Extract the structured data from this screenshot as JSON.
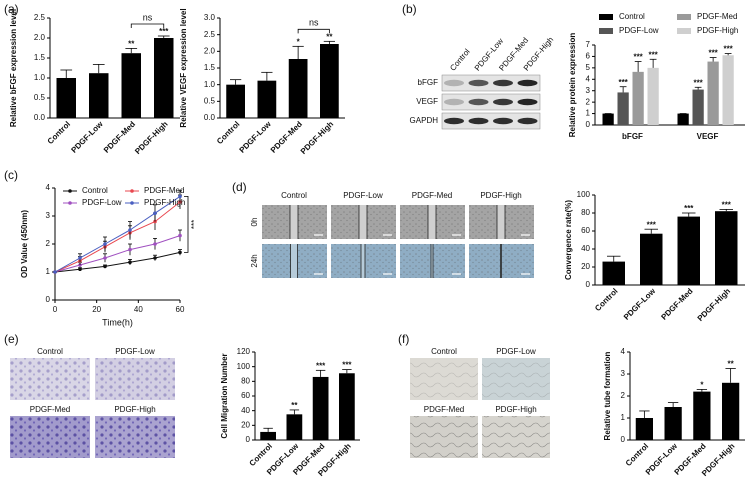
{
  "panel_labels": [
    "(a)",
    "(b)",
    "(c)",
    "(d)",
    "(e)",
    "(f)"
  ],
  "images": {
    "b": {
      "rows": [
        "bFGF",
        "VEGF",
        "GAPDH"
      ],
      "columns": [
        "Control",
        "PDGF-Low",
        "PDGF-Med",
        "PDGF-High"
      ]
    },
    "d": {
      "columns": [
        "Control",
        "PDGF-Low",
        "PDGF-Med",
        "PDGF-High"
      ],
      "rows": [
        "0h",
        "24h"
      ]
    },
    "e": {
      "labels": [
        "Control",
        "PDGF-Low",
        "PDGF-Med",
        "PDGF-High"
      ]
    },
    "f": {
      "labels": [
        "Control",
        "PDGF-Low",
        "PDGF-Med",
        "PDGF-High"
      ]
    }
  },
  "chart_data": [
    {
      "type": "bar",
      "y_label": "Relative bFGF expression  level",
      "categories": [
        "Control",
        "PDGF-Low",
        "PDGF-Med",
        "PDGF-High"
      ],
      "values": [
        1.0,
        1.12,
        1.62,
        2.0
      ],
      "errors": [
        0.2,
        0.22,
        0.12,
        0.05
      ],
      "significance": [
        null,
        null,
        "**",
        "***"
      ],
      "bracket_label": "ns",
      "color": "#000000",
      "ylim": [
        0,
        2.5
      ],
      "yticks": [
        {
          "value": 0,
          "label": "0.0"
        },
        {
          "value": 0.5,
          "label": "0.5"
        },
        {
          "value": 1,
          "label": "1.0"
        },
        {
          "value": 1.5,
          "label": "1.5"
        },
        {
          "value": 2,
          "label": "2.0"
        },
        {
          "value": 2.5,
          "label": "2.5"
        }
      ]
    },
    {
      "type": "bar",
      "y_label": "Relative VEGF expression  level",
      "categories": [
        "Control",
        "PDGF-Low",
        "PDGF-Med",
        "PDGF-High"
      ],
      "values": [
        1.0,
        1.12,
        1.77,
        2.22
      ],
      "errors": [
        0.15,
        0.25,
        0.38,
        0.08
      ],
      "significance": [
        null,
        null,
        "*",
        "**"
      ],
      "bracket_label": "ns",
      "color": "#000000",
      "ylim": [
        0,
        3
      ],
      "yticks": [
        {
          "value": 0,
          "label": "0.0"
        },
        {
          "value": 0.5,
          "label": "0.5"
        },
        {
          "value": 1,
          "label": "1.0"
        },
        {
          "value": 1.5,
          "label": "1.5"
        },
        {
          "value": 2,
          "label": "2.0"
        },
        {
          "value": 2.5,
          "label": "2.5"
        },
        {
          "value": 3,
          "label": "3.0"
        }
      ]
    },
    {
      "type": "grouped_bar",
      "y_label": "Relative protein expression",
      "categories": [
        "bFGF",
        "VEGF"
      ],
      "series": [
        {
          "name": "Control",
          "color": "#000000",
          "values": [
            1,
            1
          ],
          "errors": [
            0,
            0
          ],
          "significance": [
            null,
            null
          ]
        },
        {
          "name": "PDGF-Low",
          "color": "#555555",
          "values": [
            2.85,
            3.1
          ],
          "errors": [
            0.5,
            0.2
          ],
          "significance": [
            "***",
            "***"
          ]
        },
        {
          "name": "PDGF-Med",
          "color": "#9a9a9a",
          "values": [
            4.65,
            5.55
          ],
          "errors": [
            0.9,
            0.35
          ],
          "significance": [
            "***",
            "***"
          ]
        },
        {
          "name": "PDGF-High",
          "color": "#cfcfcf",
          "values": [
            5.0,
            6.1
          ],
          "errors": [
            0.75,
            0.15
          ],
          "significance": [
            "***",
            "***"
          ]
        }
      ],
      "ylim": [
        0,
        7
      ],
      "yticks": [
        0,
        1,
        2,
        3,
        4,
        5,
        6,
        7
      ],
      "legend": "top"
    },
    {
      "type": "line",
      "y_label": "OD Value (450nm)",
      "x_label": "Time(h)",
      "x": [
        0,
        12,
        24,
        36,
        48,
        60
      ],
      "series": [
        {
          "name": "Control",
          "color": "#111111",
          "values": [
            1,
            1.1,
            1.2,
            1.35,
            1.5,
            1.7
          ],
          "errors": [
            0,
            0.05,
            0.05,
            0.1,
            0.1,
            0.1
          ]
        },
        {
          "name": "PDGF-Low",
          "color": "#a050c0",
          "values": [
            1,
            1.25,
            1.5,
            1.8,
            2.0,
            2.3
          ],
          "errors": [
            0,
            0.1,
            0.15,
            0.2,
            0.2,
            0.2
          ]
        },
        {
          "name": "PDGF-Med",
          "color": "#e8474f",
          "values": [
            1,
            1.4,
            1.9,
            2.4,
            2.8,
            3.5
          ],
          "errors": [
            0,
            0.15,
            0.2,
            0.25,
            0.3,
            0.25
          ]
        },
        {
          "name": "PDGF-High",
          "color": "#4a5fc1",
          "values": [
            1,
            1.5,
            2.0,
            2.5,
            3.1,
            3.7
          ],
          "errors": [
            0,
            0.15,
            0.25,
            0.3,
            0.3,
            0.2
          ]
        }
      ],
      "xlim": [
        0,
        60
      ],
      "xticks": [
        0,
        20,
        40,
        60
      ],
      "ylim": [
        0,
        4
      ],
      "yticks": [
        0,
        1,
        2,
        3,
        4
      ],
      "bracket_label": "***"
    },
    {
      "type": "bar",
      "y_label": "Convergence rate(%)",
      "categories": [
        "Control",
        "PDGF-Low",
        "PDGF-Med",
        "PDGF-High"
      ],
      "values": [
        26,
        57,
        76,
        82
      ],
      "errors": [
        6,
        5,
        4,
        2
      ],
      "significance": [
        null,
        "***",
        "***",
        "***"
      ],
      "color": "#000000",
      "ylim": [
        0,
        100
      ],
      "yticks": [
        0,
        20,
        40,
        60,
        80,
        100
      ]
    },
    {
      "type": "bar",
      "y_label": "Cell Migration Number",
      "categories": [
        "Control",
        "PDGF-Low",
        "PDGF-Med",
        "PDGF-High"
      ],
      "values": [
        11,
        35,
        86,
        91
      ],
      "errors": [
        5,
        6,
        9,
        5
      ],
      "significance": [
        null,
        "**",
        "***",
        "***"
      ],
      "color": "#000000",
      "ylim": [
        0,
        120
      ],
      "yticks": [
        0,
        20,
        40,
        60,
        80,
        100,
        120
      ]
    },
    {
      "type": "bar",
      "y_label": "Relative tube formation",
      "categories": [
        "Control",
        "PDGF-Low",
        "PDGF-Med",
        "PDGF-High"
      ],
      "values": [
        1.0,
        1.5,
        2.2,
        2.6
      ],
      "errors": [
        0.32,
        0.2,
        0.1,
        0.65
      ],
      "significance": [
        null,
        null,
        "*",
        "**"
      ],
      "color": "#000000",
      "ylim": [
        0,
        4
      ],
      "yticks": [
        0,
        1,
        2,
        3,
        4
      ]
    }
  ]
}
